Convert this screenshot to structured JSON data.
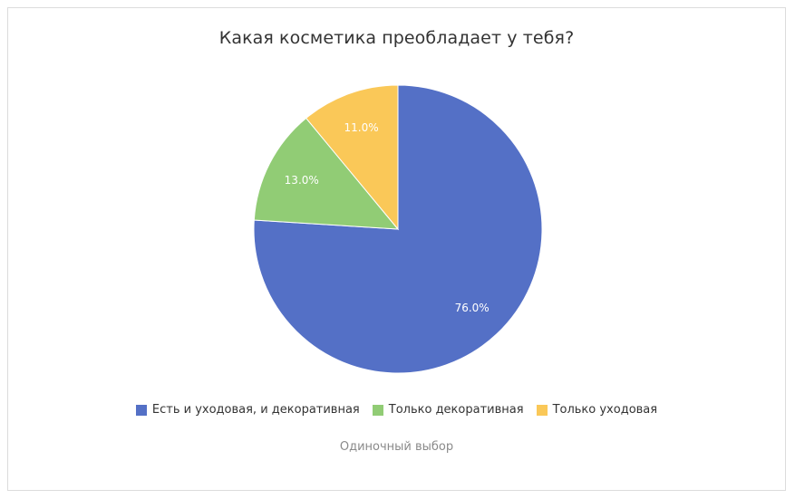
{
  "chart_data": {
    "type": "pie",
    "title": "Какая косметика преобладает у тебя?",
    "categories": [
      "Есть и уходовая, и декоративная",
      "Только декоративная",
      "Только уходовая"
    ],
    "values": [
      76.0,
      13.0,
      11.0
    ],
    "value_labels": [
      "76.0%",
      "13.0%",
      "11.0%"
    ],
    "colors": [
      "#5470c6",
      "#91cc75",
      "#fac858"
    ],
    "legend_position": "bottom"
  },
  "footer": "Одиночный выбор"
}
